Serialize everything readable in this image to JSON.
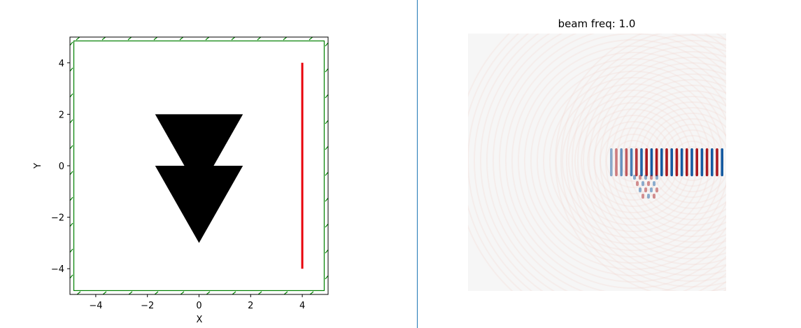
{
  "chart_data": [
    {
      "type": "scatter",
      "title": "",
      "xlabel": "X",
      "ylabel": "Y",
      "xlim": [
        -5,
        5
      ],
      "ylim": [
        -5,
        5
      ],
      "xticks": [
        -4,
        -2,
        0,
        2,
        4
      ],
      "yticks": [
        -4,
        -2,
        0,
        2,
        4
      ],
      "xtick_labels": [
        "−4",
        "−2",
        "0",
        "2",
        "4"
      ],
      "ytick_labels": [
        "−4",
        "−2",
        "0",
        "2",
        "4"
      ],
      "grid": false,
      "geometry": {
        "triangles": [
          {
            "vertices": [
              [
                -1.7,
                2
              ],
              [
                1.7,
                2
              ],
              [
                0,
                -1
              ]
            ],
            "color": "#000000"
          },
          {
            "vertices": [
              [
                -1.7,
                0
              ],
              [
                1.7,
                0
              ],
              [
                0,
                -3
              ]
            ],
            "color": "#000000"
          }
        ],
        "source_line": {
          "x": 4,
          "y_start": -4,
          "y_end": 4,
          "color": "#e8000b"
        },
        "pml_boundary": {
          "thickness": 0.15,
          "color": "#008000"
        }
      }
    },
    {
      "type": "heatmap",
      "title": "beam freq: 1.0",
      "xlabel": "",
      "ylabel": "",
      "colormap": "RdBu",
      "description_colors": {
        "positive": "#8b0000",
        "negative": "#08306b",
        "zero": "#f5f5f5"
      }
    }
  ]
}
